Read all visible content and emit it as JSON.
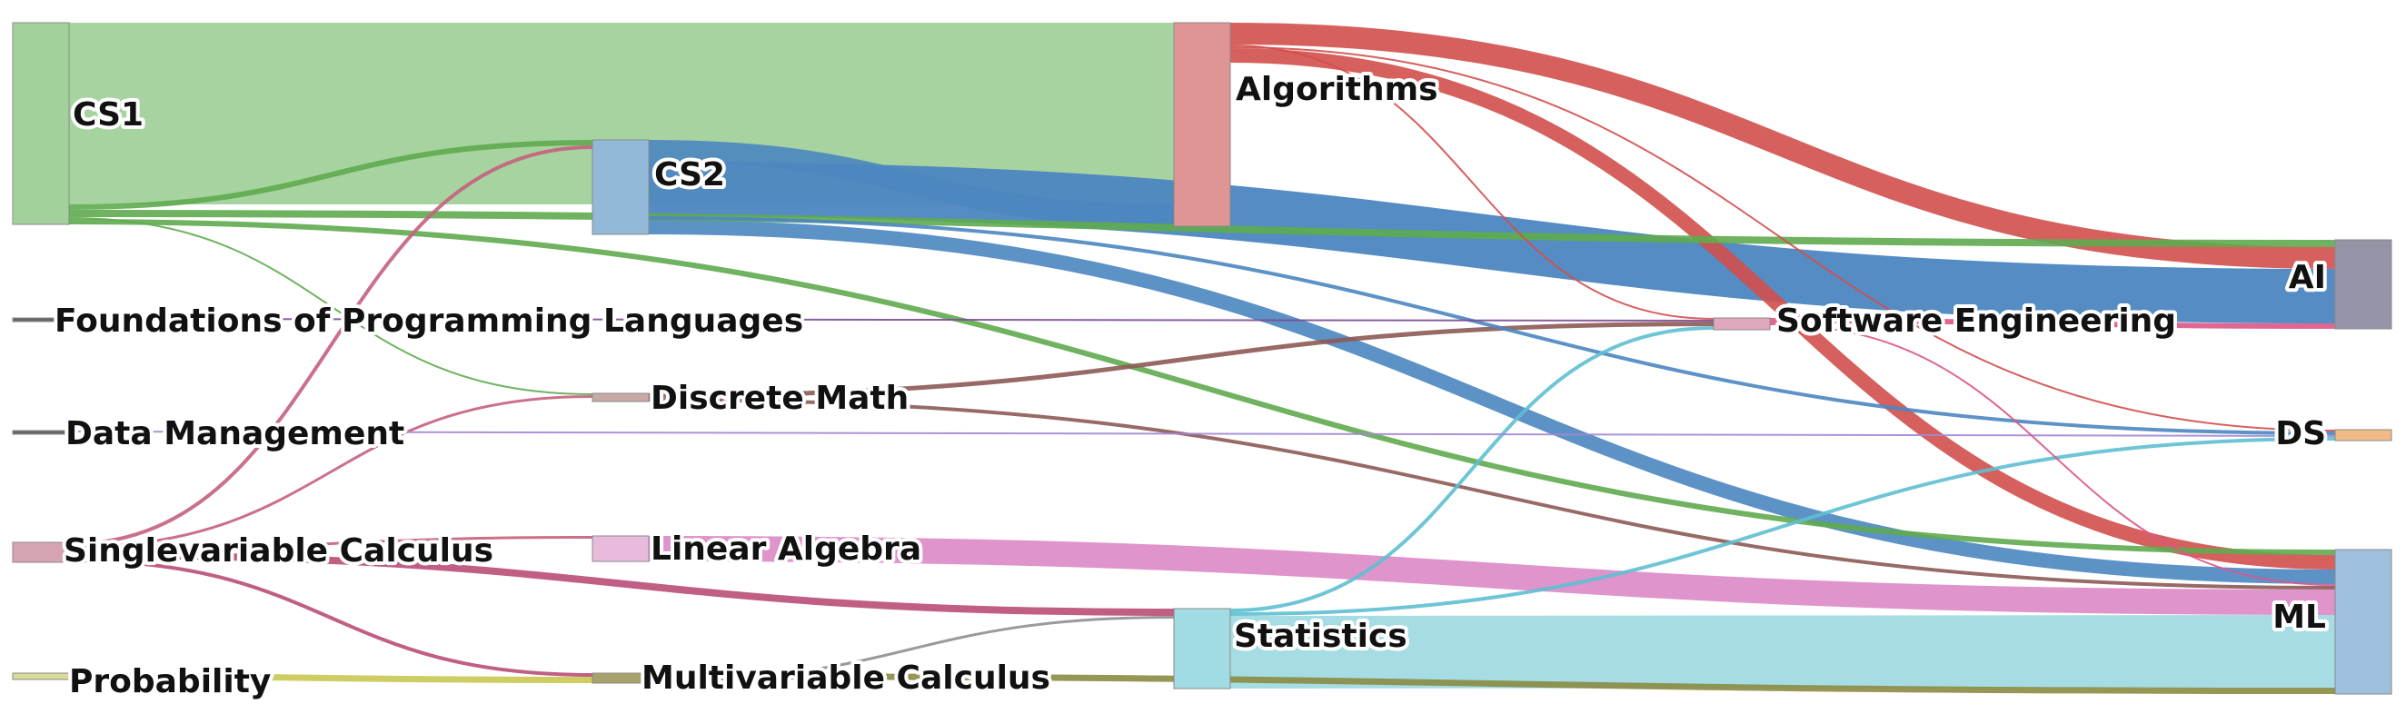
{
  "nodes": [
    {
      "id": "cs1",
      "label": "CS1",
      "color": "#a2d19b"
    },
    {
      "id": "cs2",
      "label": "CS2",
      "color": "#93b9d9"
    },
    {
      "id": "fpl",
      "label": "Foundations of Programming Languages",
      "color": "#666666"
    },
    {
      "id": "dm",
      "label": "Data Management",
      "color": "#666666"
    },
    {
      "id": "svc",
      "label": "Singlevariable Calculus",
      "color": "#d6a3b3"
    },
    {
      "id": "prob",
      "label": "Probability",
      "color": "#d8db9a"
    },
    {
      "id": "dmath",
      "label": "Discrete Math",
      "color": "#c8aaa5"
    },
    {
      "id": "la",
      "label": "Linear Algebra",
      "color": "#e8bbdd"
    },
    {
      "id": "mvc",
      "label": "Multivariable Calculus",
      "color": "#a7a36a"
    },
    {
      "id": "alg",
      "label": "Algorithms",
      "color": "#df9594"
    },
    {
      "id": "stats",
      "label": "Statistics",
      "color": "#a1dbe3"
    },
    {
      "id": "se",
      "label": "Software Engineering",
      "color": "#e0a8bd"
    },
    {
      "id": "ai",
      "label": "AI",
      "color": "#9494a6"
    },
    {
      "id": "ds",
      "label": "DS",
      "color": "#f1bb87"
    },
    {
      "id": "ml",
      "label": "ML",
      "color": "#9ec0dc"
    }
  ],
  "links": [
    {
      "source": "cs1",
      "target": "alg",
      "value": 100,
      "color": "#a2d19b"
    },
    {
      "source": "cs1",
      "target": "cs2",
      "value": 3,
      "color": "#5fab4f"
    },
    {
      "source": "cs1",
      "target": "dmath",
      "value": 1,
      "color": "#5fab4f"
    },
    {
      "source": "cs1",
      "target": "ai",
      "value": 4,
      "color": "#5fab4f"
    },
    {
      "source": "cs1",
      "target": "ml",
      "value": 3,
      "color": "#5fab4f"
    },
    {
      "source": "cs2",
      "target": "alg",
      "value": 12,
      "color": "#4b86c0"
    },
    {
      "source": "cs2",
      "target": "ai",
      "value": 30,
      "color": "#4b86c0"
    },
    {
      "source": "cs2",
      "target": "ml",
      "value": 8,
      "color": "#4b86c0"
    },
    {
      "source": "cs2",
      "target": "ds",
      "value": 2,
      "color": "#4b86c0"
    },
    {
      "source": "fpl",
      "target": "se",
      "value": 1,
      "color": "#7b4d92"
    },
    {
      "source": "dm",
      "target": "ds",
      "value": 1,
      "color": "#a287d3"
    },
    {
      "source": "svc",
      "target": "cs2",
      "value": 2,
      "color": "#c5607d"
    },
    {
      "source": "svc",
      "target": "dmath",
      "value": 1.5,
      "color": "#c5607d"
    },
    {
      "source": "svc",
      "target": "la",
      "value": 1.5,
      "color": "#c5607d"
    },
    {
      "source": "svc",
      "target": "stats",
      "value": 4,
      "color": "#b94d75"
    },
    {
      "source": "svc",
      "target": "mvc",
      "value": 2,
      "color": "#b94d75"
    },
    {
      "source": "prob",
      "target": "mvc",
      "value": 3.5,
      "color": "#c8c852"
    },
    {
      "source": "dmath",
      "target": "se",
      "value": 2.5,
      "color": "#8c5a55"
    },
    {
      "source": "dmath",
      "target": "ml",
      "value": 2,
      "color": "#8c5a55"
    },
    {
      "source": "la",
      "target": "ml",
      "value": 14,
      "color": "#dd88c7"
    },
    {
      "source": "mvc",
      "target": "stats",
      "value": 1.5,
      "color": "#8f8f8f"
    },
    {
      "source": "mvc",
      "target": "ml",
      "value": 3.5,
      "color": "#8b8b42"
    },
    {
      "source": "alg",
      "target": "ai",
      "value": 12,
      "color": "#d24f4d"
    },
    {
      "source": "alg",
      "target": "se",
      "value": 1,
      "color": "#d24f4d"
    },
    {
      "source": "alg",
      "target": "ml",
      "value": 8,
      "color": "#d24f4d"
    },
    {
      "source": "alg",
      "target": "ds",
      "value": 1,
      "color": "#d24f4d"
    },
    {
      "source": "stats",
      "target": "ml",
      "value": 40,
      "color": "#a1dbe3"
    },
    {
      "source": "stats",
      "target": "se",
      "value": 2,
      "color": "#5ebfd2"
    },
    {
      "source": "stats",
      "target": "ds",
      "value": 2,
      "color": "#5ebfd2"
    },
    {
      "source": "se",
      "target": "ai",
      "value": 3,
      "color": "#dd5588"
    },
    {
      "source": "se",
      "target": "ml",
      "value": 1,
      "color": "#dd5588"
    }
  ]
}
